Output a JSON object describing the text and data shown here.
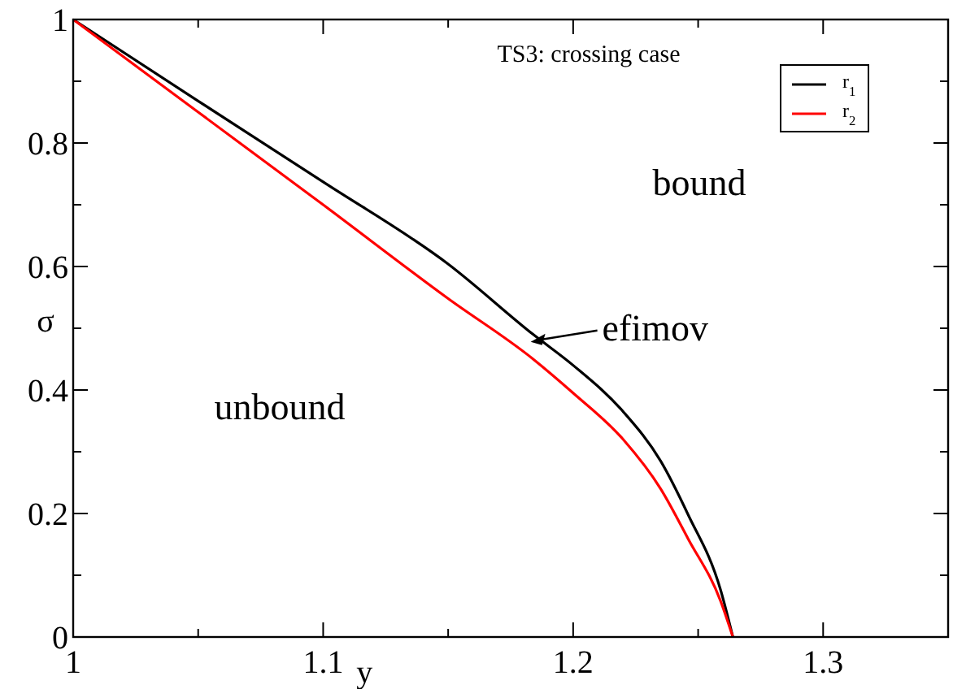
{
  "chart_data": {
    "type": "line",
    "xlabel": "y",
    "ylabel": "σ",
    "xlim": [
      1,
      1.35
    ],
    "ylim": [
      0,
      1
    ],
    "xticks": [
      1,
      {
        "value": 1.05,
        "label": null
      },
      1.1,
      {
        "value": 1.15,
        "label": null
      },
      1.2,
      {
        "value": 1.25,
        "label": null
      },
      1.3
    ],
    "yticks": [
      0,
      {
        "value": 0.1,
        "label": null
      },
      0.2,
      {
        "value": 0.3,
        "label": null
      },
      0.4,
      {
        "value": 0.5,
        "label": null
      },
      0.6,
      {
        "value": 0.7,
        "label": null
      },
      0.8,
      {
        "value": 0.9,
        "label": null
      },
      1
    ],
    "x": [
      1,
      1.05,
      1.1,
      1.15,
      1.184,
      1.2,
      1.22,
      1.235,
      1.246,
      1.259,
      1.2639
    ],
    "series": [
      {
        "name": "r$_{1}$",
        "color": "#000000",
        "values": [
          1,
          0.868,
          0.737,
          0.604,
          0.49,
          0.44,
          0.365,
          0.285,
          0.198,
          0.076,
          0
        ]
      },
      {
        "name": "r$_{2}$",
        "color": "#ff0000",
        "values": [
          1,
          0.85,
          0.7,
          0.548,
          0.45,
          0.395,
          0.32,
          0.24,
          0.159,
          0.058,
          0
        ]
      }
    ],
    "annotations": [
      "TS3: crossing case",
      "bound",
      "unbound",
      {
        "text": "efimov",
        "x": 1.183,
        "y": 0.478
      }
    ],
    "legend": "top right",
    "grid": false,
    "marker": "none",
    "line_style": "solid"
  }
}
